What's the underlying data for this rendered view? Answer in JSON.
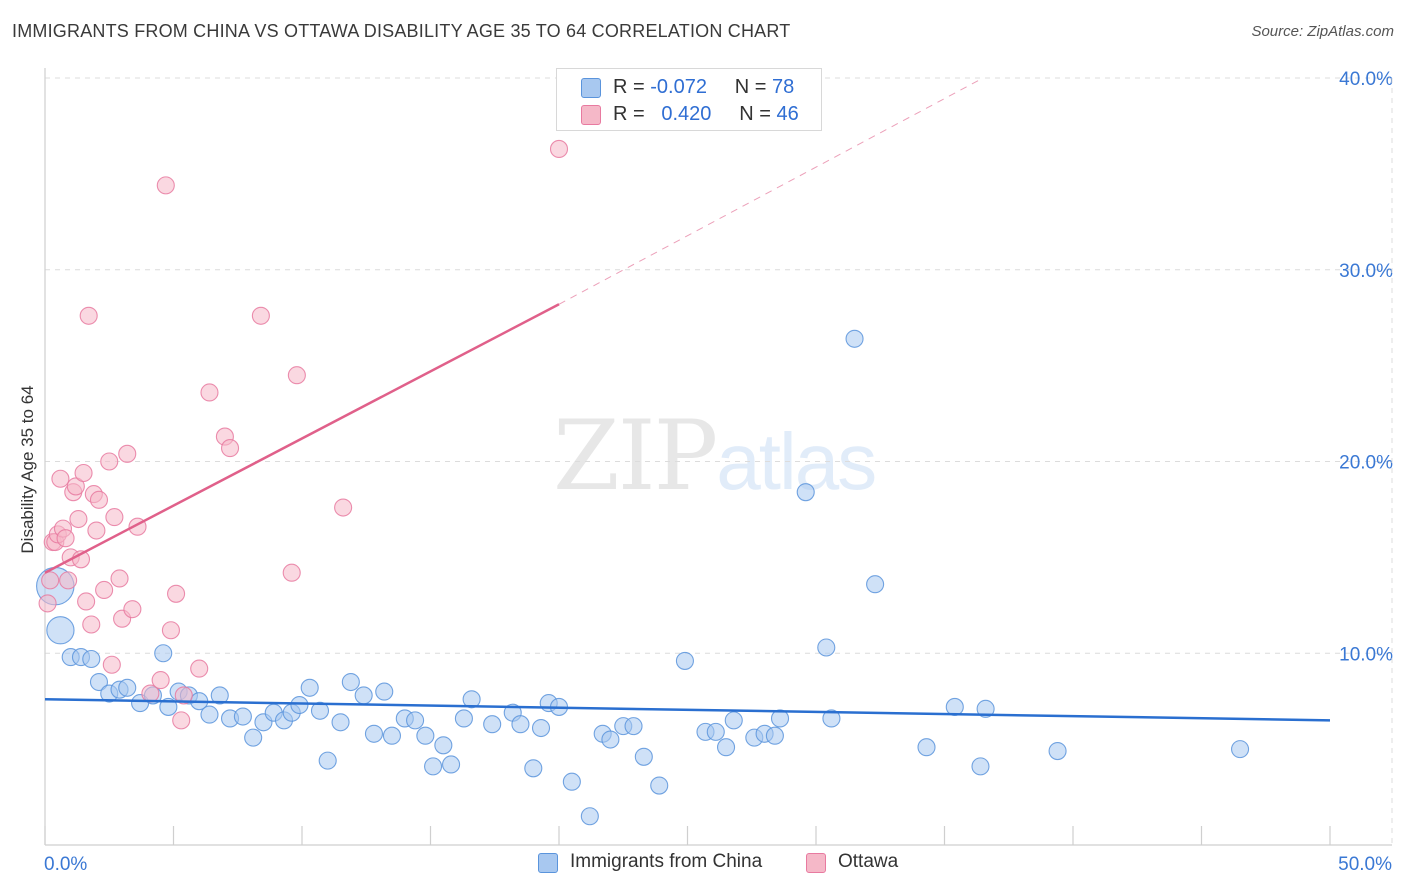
{
  "title": "IMMIGRANTS FROM CHINA VS OTTAWA DISABILITY AGE 35 TO 64 CORRELATION CHART",
  "source": "Source: ZipAtlas.com",
  "watermark": {
    "zip": "ZIP",
    "atlas": "atlas"
  },
  "legend_stats": [
    {
      "r_label": "R =",
      "r_value": "-0.072",
      "n_label": "N =",
      "n_value": "78",
      "color": "#a8c8f0"
    },
    {
      "r_label": "R =",
      "r_value": "0.420",
      "n_label": "N =",
      "n_value": "46",
      "color": "#f5b8c8"
    }
  ],
  "legend_series": [
    {
      "name": "Immigrants from China",
      "color": "#a8c8f0"
    },
    {
      "name": "Ottawa",
      "color": "#f5b8c8"
    }
  ],
  "colors": {
    "blue_fill": "#a8c8f0",
    "blue_stroke": "#5a94dc",
    "blue_line": "#2a6fd0",
    "pink_fill": "#f5b8c8",
    "pink_stroke": "#e87aa0",
    "pink_line": "#e0608a",
    "tick_text": "#3a78d4",
    "grid": "#dcdcdc"
  },
  "chart_data": {
    "type": "scatter",
    "title": "IMMIGRANTS FROM CHINA VS OTTAWA DISABILITY AGE 35 TO 64 CORRELATION CHART",
    "xlabel": "",
    "ylabel": "Disability Age 35 to 64",
    "xlim": [
      0,
      50
    ],
    "ylim": [
      0,
      40
    ],
    "x_tick_labels": [
      {
        "value": 0,
        "label": "0.0%"
      },
      {
        "value": 50,
        "label": "50.0%"
      }
    ],
    "y_tick_labels": [
      {
        "value": 10,
        "label": "10.0%"
      },
      {
        "value": 20,
        "label": "20.0%"
      },
      {
        "value": 30,
        "label": "30.0%"
      },
      {
        "value": 40,
        "label": "40.0%"
      }
    ],
    "series": [
      {
        "name": "Immigrants from China",
        "trend": {
          "x0": 0,
          "y0": 7.6,
          "x1": 50,
          "y1": 6.5
        },
        "points": [
          {
            "x": 0.4,
            "y": 13.5,
            "s": 2.2
          },
          {
            "x": 0.6,
            "y": 11.2,
            "s": 1.6
          },
          {
            "x": 1.0,
            "y": 9.8
          },
          {
            "x": 1.4,
            "y": 9.8
          },
          {
            "x": 1.8,
            "y": 9.7
          },
          {
            "x": 2.1,
            "y": 8.5
          },
          {
            "x": 2.5,
            "y": 7.9
          },
          {
            "x": 2.9,
            "y": 8.1
          },
          {
            "x": 3.2,
            "y": 8.2
          },
          {
            "x": 3.7,
            "y": 7.4
          },
          {
            "x": 4.2,
            "y": 7.8
          },
          {
            "x": 4.6,
            "y": 10.0
          },
          {
            "x": 4.8,
            "y": 7.2
          },
          {
            "x": 5.2,
            "y": 8.0
          },
          {
            "x": 5.6,
            "y": 7.8
          },
          {
            "x": 6.0,
            "y": 7.5
          },
          {
            "x": 6.4,
            "y": 6.8
          },
          {
            "x": 6.8,
            "y": 7.8
          },
          {
            "x": 7.2,
            "y": 6.6
          },
          {
            "x": 7.7,
            "y": 6.7
          },
          {
            "x": 8.1,
            "y": 5.6
          },
          {
            "x": 8.5,
            "y": 6.4
          },
          {
            "x": 8.9,
            "y": 6.9
          },
          {
            "x": 9.3,
            "y": 6.5
          },
          {
            "x": 9.6,
            "y": 6.9
          },
          {
            "x": 9.9,
            "y": 7.3
          },
          {
            "x": 10.3,
            "y": 8.2
          },
          {
            "x": 10.7,
            "y": 7.0
          },
          {
            "x": 11.0,
            "y": 4.4
          },
          {
            "x": 11.5,
            "y": 6.4
          },
          {
            "x": 11.9,
            "y": 8.5
          },
          {
            "x": 12.4,
            "y": 7.8
          },
          {
            "x": 12.8,
            "y": 5.8
          },
          {
            "x": 13.2,
            "y": 8.0
          },
          {
            "x": 13.5,
            "y": 5.7
          },
          {
            "x": 14.0,
            "y": 6.6
          },
          {
            "x": 14.4,
            "y": 6.5
          },
          {
            "x": 14.8,
            "y": 5.7
          },
          {
            "x": 15.1,
            "y": 4.1
          },
          {
            "x": 15.5,
            "y": 5.2
          },
          {
            "x": 15.8,
            "y": 4.2
          },
          {
            "x": 16.3,
            "y": 6.6
          },
          {
            "x": 16.6,
            "y": 7.6
          },
          {
            "x": 17.4,
            "y": 6.3
          },
          {
            "x": 18.2,
            "y": 6.9
          },
          {
            "x": 18.5,
            "y": 6.3
          },
          {
            "x": 19.0,
            "y": 4.0
          },
          {
            "x": 19.3,
            "y": 6.1
          },
          {
            "x": 19.6,
            "y": 7.4
          },
          {
            "x": 20.0,
            "y": 7.2
          },
          {
            "x": 20.5,
            "y": 3.3
          },
          {
            "x": 21.2,
            "y": 1.5
          },
          {
            "x": 21.7,
            "y": 5.8
          },
          {
            "x": 22.0,
            "y": 5.5
          },
          {
            "x": 22.5,
            "y": 6.2
          },
          {
            "x": 22.9,
            "y": 6.2
          },
          {
            "x": 23.3,
            "y": 4.6
          },
          {
            "x": 23.9,
            "y": 3.1
          },
          {
            "x": 24.9,
            "y": 9.6
          },
          {
            "x": 25.7,
            "y": 5.9
          },
          {
            "x": 26.1,
            "y": 5.9
          },
          {
            "x": 26.5,
            "y": 5.1
          },
          {
            "x": 26.8,
            "y": 6.5
          },
          {
            "x": 27.6,
            "y": 5.6
          },
          {
            "x": 28.0,
            "y": 5.8
          },
          {
            "x": 28.4,
            "y": 5.7
          },
          {
            "x": 28.6,
            "y": 6.6
          },
          {
            "x": 29.6,
            "y": 18.4
          },
          {
            "x": 30.4,
            "y": 10.3
          },
          {
            "x": 30.6,
            "y": 6.6
          },
          {
            "x": 31.5,
            "y": 26.4
          },
          {
            "x": 32.3,
            "y": 13.6
          },
          {
            "x": 34.3,
            "y": 5.1
          },
          {
            "x": 35.4,
            "y": 7.2
          },
          {
            "x": 36.4,
            "y": 4.1
          },
          {
            "x": 36.6,
            "y": 7.1
          },
          {
            "x": 39.4,
            "y": 4.9
          },
          {
            "x": 46.5,
            "y": 5.0
          }
        ]
      },
      {
        "name": "Ottawa",
        "trend": {
          "x0": 0,
          "y0": 14.2,
          "x1": 20,
          "y1": 28.2,
          "dashed_to": {
            "x": 36.5,
            "y": 40
          }
        },
        "points": [
          {
            "x": 0.1,
            "y": 12.6
          },
          {
            "x": 0.2,
            "y": 13.8
          },
          {
            "x": 0.3,
            "y": 15.8
          },
          {
            "x": 0.4,
            "y": 15.8
          },
          {
            "x": 0.5,
            "y": 16.2
          },
          {
            "x": 0.6,
            "y": 19.1
          },
          {
            "x": 0.7,
            "y": 16.5
          },
          {
            "x": 0.8,
            "y": 16.0
          },
          {
            "x": 0.9,
            "y": 13.8
          },
          {
            "x": 1.0,
            "y": 15.0
          },
          {
            "x": 1.1,
            "y": 18.4
          },
          {
            "x": 1.2,
            "y": 18.7
          },
          {
            "x": 1.3,
            "y": 17.0
          },
          {
            "x": 1.4,
            "y": 14.9
          },
          {
            "x": 1.5,
            "y": 19.4
          },
          {
            "x": 1.6,
            "y": 12.7
          },
          {
            "x": 1.7,
            "y": 27.6
          },
          {
            "x": 1.8,
            "y": 11.5
          },
          {
            "x": 1.9,
            "y": 18.3
          },
          {
            "x": 2.0,
            "y": 16.4
          },
          {
            "x": 2.1,
            "y": 18.0
          },
          {
            "x": 2.3,
            "y": 13.3
          },
          {
            "x": 2.5,
            "y": 20.0
          },
          {
            "x": 2.6,
            "y": 9.4
          },
          {
            "x": 2.7,
            "y": 17.1
          },
          {
            "x": 2.9,
            "y": 13.9
          },
          {
            "x": 3.0,
            "y": 11.8
          },
          {
            "x": 3.2,
            "y": 20.4
          },
          {
            "x": 3.4,
            "y": 12.3
          },
          {
            "x": 3.6,
            "y": 16.6
          },
          {
            "x": 4.1,
            "y": 7.9
          },
          {
            "x": 4.5,
            "y": 8.6
          },
          {
            "x": 4.7,
            "y": 34.4
          },
          {
            "x": 4.9,
            "y": 11.2
          },
          {
            "x": 5.1,
            "y": 13.1
          },
          {
            "x": 5.3,
            "y": 6.5
          },
          {
            "x": 5.4,
            "y": 7.8
          },
          {
            "x": 6.0,
            "y": 9.2
          },
          {
            "x": 6.4,
            "y": 23.6
          },
          {
            "x": 7.0,
            "y": 21.3
          },
          {
            "x": 7.2,
            "y": 20.7
          },
          {
            "x": 8.4,
            "y": 27.6
          },
          {
            "x": 9.6,
            "y": 14.2
          },
          {
            "x": 9.8,
            "y": 24.5
          },
          {
            "x": 11.6,
            "y": 17.6
          },
          {
            "x": 20.0,
            "y": 36.3
          }
        ]
      }
    ]
  }
}
